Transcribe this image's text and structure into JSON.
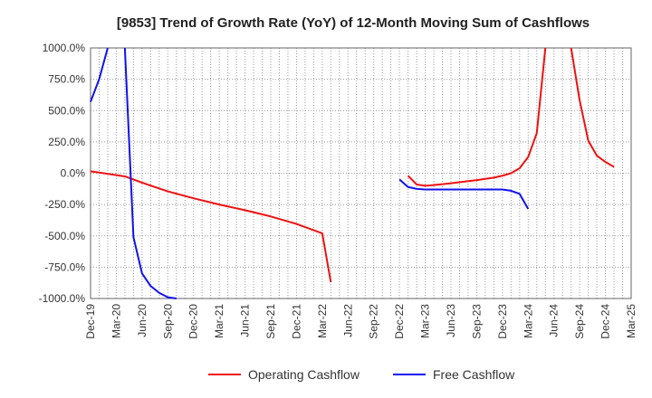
{
  "chart_data": {
    "type": "line",
    "title": "[9853]  Trend of Growth Rate (YoY) of 12-Month Moving Sum of Cashflows",
    "xlabel": "",
    "ylabel": "",
    "ylim": [
      -1000,
      1000
    ],
    "y_ticks": [
      1000,
      750,
      500,
      250,
      0,
      -250,
      -500,
      -750,
      -1000
    ],
    "y_tick_labels": [
      "1000.0%",
      "750.0%",
      "500.0%",
      "250.0%",
      "0.0%",
      "-250.0%",
      "-500.0%",
      "-750.0%",
      "-1000.0%"
    ],
    "x_tick_labels": [
      "Dec-19",
      "Mar-20",
      "Jun-20",
      "Sep-20",
      "Dec-20",
      "Mar-21",
      "Jun-21",
      "Sep-21",
      "Dec-21",
      "Mar-22",
      "Jun-22",
      "Sep-22",
      "Dec-22",
      "Mar-23",
      "Jun-23",
      "Sep-23",
      "Dec-23",
      "Mar-24",
      "Jun-24",
      "Sep-24",
      "Dec-24",
      "Mar-25"
    ],
    "grid": true,
    "legend_position": "bottom",
    "colors": {
      "operating": "#ee1111",
      "free": "#1111ee"
    },
    "series": [
      {
        "name": "Operating Cashflow",
        "color": "#ee1111",
        "points": [
          [
            0,
            15
          ],
          [
            3,
            -15
          ],
          [
            4,
            -25
          ],
          [
            6,
            -75
          ],
          [
            9,
            -145
          ],
          [
            12,
            -200
          ],
          [
            15,
            -250
          ],
          [
            18,
            -295
          ],
          [
            21,
            -345
          ],
          [
            24,
            -405
          ],
          [
            27,
            -480
          ],
          [
            28,
            -870
          ],
          null,
          [
            37,
            -20
          ],
          [
            38,
            -90
          ],
          [
            39,
            -100
          ],
          [
            40,
            -95
          ],
          [
            42,
            -80
          ],
          [
            45,
            -55
          ],
          [
            47,
            -35
          ],
          [
            48,
            -20
          ],
          [
            49,
            0
          ],
          [
            50,
            40
          ],
          [
            51,
            130
          ],
          [
            52,
            320
          ],
          [
            53,
            1000
          ],
          null,
          [
            56,
            1000
          ],
          [
            57,
            580
          ],
          [
            58,
            260
          ],
          [
            59,
            140
          ],
          [
            60,
            90
          ],
          [
            61,
            50
          ]
        ]
      },
      {
        "name": "Free Cashflow",
        "color": "#1111ee",
        "points": [
          [
            0,
            570
          ],
          [
            1,
            750
          ],
          [
            2,
            1000
          ],
          null,
          [
            4,
            1000
          ],
          [
            5,
            -510
          ],
          [
            6,
            -800
          ],
          [
            7,
            -900
          ],
          [
            8,
            -955
          ],
          [
            9,
            -990
          ],
          [
            10,
            -1000
          ],
          null,
          [
            36,
            -50
          ],
          [
            37,
            -110
          ],
          [
            38,
            -125
          ],
          [
            39,
            -130
          ],
          [
            40,
            -130
          ],
          [
            42,
            -130
          ],
          [
            44,
            -130
          ],
          [
            46,
            -130
          ],
          [
            48,
            -130
          ],
          [
            49,
            -140
          ],
          [
            50,
            -165
          ],
          [
            51,
            -285
          ]
        ]
      }
    ]
  }
}
